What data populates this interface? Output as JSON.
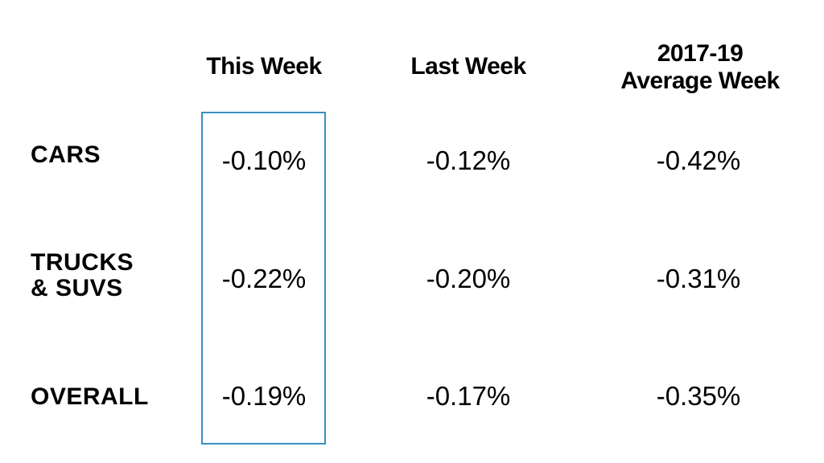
{
  "chart_data": {
    "type": "table",
    "columns": [
      "This Week",
      "Last Week",
      "2017-19 Average Week"
    ],
    "column_header_lines": [
      [
        "This Week"
      ],
      [
        "Last Week"
      ],
      [
        "2017-19",
        "Average Week"
      ]
    ],
    "rows": [
      "CARS",
      "TRUCKS & SUVS",
      "OVERALL"
    ],
    "row_header_lines": [
      [
        "CARS"
      ],
      [
        "TRUCKS",
        "& SUVS"
      ],
      [
        "OVERALL"
      ]
    ],
    "cells": [
      [
        "-0.10%",
        "-0.12%",
        "-0.42%"
      ],
      [
        "-0.22%",
        "-0.20%",
        "-0.31%"
      ],
      [
        "-0.19%",
        "-0.17%",
        "-0.35%"
      ]
    ],
    "highlighted_column": "This Week",
    "highlight_color": "#3a8fc2"
  }
}
